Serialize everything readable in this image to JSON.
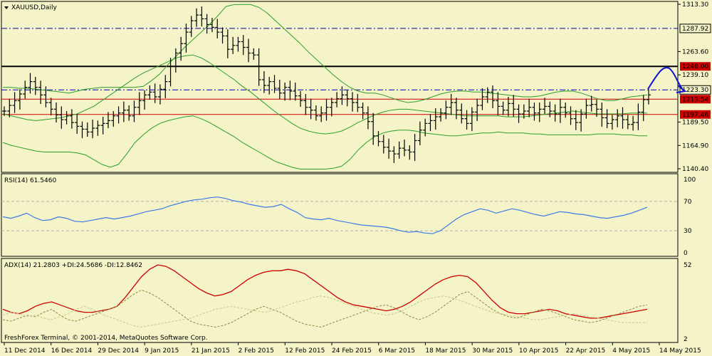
{
  "chart_data": [
    {
      "type": "candlestick",
      "title": "XAUUSD,Daily",
      "ylim": [
        1140.4,
        1313.3
      ],
      "yticks": [
        "1313.30",
        "1263.60",
        "1239.10",
        "1189.50",
        "1164.90",
        "1140.40"
      ],
      "levels": [
        {
          "label": "1287.92",
          "value": 1287.92,
          "style": "dashdot",
          "color": "#0000aa"
        },
        {
          "label": "1248.00",
          "value": 1248.0,
          "style": "solid",
          "color": "#000000",
          "tag": "#cc0000"
        },
        {
          "label": "1223.30",
          "value": 1223.3,
          "style": "dashdot",
          "color": "#0000aa"
        },
        {
          "label": "1213.54",
          "value": 1213.54,
          "style": "solid",
          "color": "#cc0000",
          "tag": "#cc0000"
        },
        {
          "label": "1197.46",
          "value": 1197.46,
          "style": "solid",
          "color": "#cc0000",
          "tag": "#cc0000"
        }
      ],
      "close": [
        1201,
        1207,
        1212,
        1219,
        1226,
        1232,
        1226,
        1218,
        1210,
        1203,
        1197,
        1192,
        1196,
        1189,
        1185,
        1182,
        1179,
        1183,
        1186,
        1188,
        1191,
        1196,
        1199,
        1202,
        1196,
        1205,
        1212,
        1218,
        1221,
        1216,
        1224,
        1232,
        1248,
        1262,
        1272,
        1284,
        1296,
        1302,
        1298,
        1292,
        1289,
        1284,
        1280,
        1266,
        1270,
        1274,
        1268,
        1262,
        1260,
        1234,
        1228,
        1232,
        1225,
        1220,
        1226,
        1222,
        1217,
        1212,
        1205,
        1202,
        1196,
        1199,
        1205,
        1210,
        1214,
        1218,
        1214,
        1210,
        1205,
        1199,
        1190,
        1175,
        1169,
        1163,
        1159,
        1156,
        1162,
        1160,
        1158,
        1170,
        1181,
        1188,
        1191,
        1195,
        1199,
        1205,
        1210,
        1202,
        1193,
        1188,
        1200,
        1207,
        1216,
        1221,
        1212,
        1206,
        1202,
        1209,
        1203,
        1198,
        1201,
        1205,
        1199,
        1203,
        1206,
        1201,
        1198,
        1205,
        1199,
        1193,
        1189,
        1198,
        1207,
        1208,
        1203,
        1194,
        1188,
        1192,
        1196,
        1192,
        1187,
        1189,
        1200,
        1213,
        1218
      ],
      "bb_upper": [
        1226,
        1226,
        1225,
        1225,
        1224,
        1223,
        1222,
        1221,
        1220,
        1222,
        1224,
        1225,
        1226,
        1226,
        1226,
        1226,
        1226,
        1227,
        1233,
        1240,
        1250,
        1259,
        1268,
        1276,
        1284,
        1292,
        1301,
        1311,
        1313,
        1313,
        1313,
        1310,
        1304,
        1296,
        1288,
        1280,
        1272,
        1263,
        1255,
        1247,
        1239,
        1232,
        1226,
        1222,
        1220,
        1220,
        1218,
        1215,
        1212,
        1210,
        1211,
        1213,
        1216,
        1219,
        1221,
        1222,
        1222,
        1221,
        1221,
        1220,
        1219,
        1218,
        1217,
        1216,
        1216,
        1217,
        1219,
        1221,
        1222,
        1222,
        1220,
        1217,
        1214,
        1212,
        1212,
        1214,
        1216,
        1217,
        1218
      ],
      "bb_middle": [
        1198,
        1196,
        1194,
        1192,
        1191,
        1192,
        1193,
        1194,
        1196,
        1198,
        1202,
        1206,
        1212,
        1218,
        1224,
        1230,
        1236,
        1241,
        1245,
        1249,
        1253,
        1257,
        1259,
        1260,
        1257,
        1252,
        1246,
        1240,
        1234,
        1227,
        1221,
        1214,
        1207,
        1200,
        1194,
        1188,
        1183,
        1180,
        1178,
        1177,
        1178,
        1180,
        1184,
        1189,
        1193,
        1197,
        1200,
        1202,
        1203,
        1203,
        1202,
        1201,
        1200,
        1199,
        1198,
        1197,
        1196,
        1196,
        1196,
        1196,
        1196,
        1195,
        1195,
        1195,
        1196,
        1197,
        1198,
        1199,
        1200,
        1201,
        1200,
        1199,
        1198,
        1198,
        1198,
        1198,
        1199,
        1199,
        1199
      ],
      "bb_lower": [
        1168,
        1165,
        1163,
        1161,
        1159,
        1158,
        1158,
        1158,
        1158,
        1157,
        1155,
        1150,
        1145,
        1142,
        1145,
        1156,
        1168,
        1176,
        1183,
        1188,
        1191,
        1193,
        1195,
        1196,
        1193,
        1189,
        1184,
        1179,
        1174,
        1168,
        1163,
        1158,
        1153,
        1148,
        1145,
        1142,
        1140,
        1140,
        1140,
        1140,
        1141,
        1143,
        1150,
        1160,
        1168,
        1174,
        1178,
        1180,
        1181,
        1181,
        1180,
        1178,
        1177,
        1176,
        1175,
        1175,
        1176,
        1177,
        1178,
        1178,
        1179,
        1178,
        1178,
        1178,
        1177,
        1177,
        1176,
        1176,
        1176,
        1176,
        1176,
        1176,
        1177,
        1177,
        1177,
        1176,
        1176,
        1175,
        1175
      ],
      "xticks": [
        "11 Dec 2014",
        "16 Dec 2014",
        "29 Dec 2014",
        "9 Jan 2015",
        "21 Jan 2015",
        "2 Feb 2015",
        "12 Feb 2015",
        "24 Feb 2015",
        "6 Mar 2015",
        "18 Mar 2015",
        "30 Mar 2015",
        "10 Apr 2015",
        "22 Apr 2015",
        "4 May 2015",
        "14 May 2015"
      ]
    },
    {
      "type": "line",
      "title": "RSI(14) 61.5460",
      "ylim": [
        0,
        100
      ],
      "yticks": [
        "100",
        "70",
        "30",
        "0"
      ],
      "levels": [
        70,
        30
      ],
      "values": [
        49,
        47,
        50,
        54,
        48,
        44,
        45,
        49,
        47,
        43,
        42,
        44,
        46,
        48,
        46,
        48,
        50,
        53,
        56,
        58,
        60,
        64,
        67,
        70,
        72,
        73,
        75,
        76,
        74,
        71,
        69,
        66,
        64,
        62,
        63,
        66,
        60,
        55,
        48,
        46,
        45,
        47,
        44,
        42,
        40,
        38,
        37,
        36,
        35,
        33,
        30,
        28,
        29,
        27,
        26,
        30,
        38,
        46,
        52,
        56,
        60,
        58,
        54,
        57,
        60,
        58,
        55,
        52,
        50,
        53,
        56,
        55,
        53,
        52,
        50,
        48,
        47,
        49,
        51,
        54,
        58,
        62
      ],
      "line_color": "#3a7ce8"
    },
    {
      "type": "line",
      "title": "ADX(14) 21.2803 +DI:24.5686 -DI:12.8462",
      "ylim": [
        2,
        52
      ],
      "yticks": [
        "52",
        "2"
      ],
      "series": [
        {
          "name": "ADX",
          "color": "#cc0000",
          "values": [
            22,
            20,
            19,
            21,
            24,
            26,
            27,
            25,
            23,
            21,
            20,
            20,
            21,
            22,
            24,
            30,
            37,
            44,
            49,
            52,
            51,
            48,
            44,
            40,
            36,
            33,
            31,
            32,
            34,
            38,
            42,
            45,
            47,
            48,
            48,
            49,
            48,
            46,
            42,
            38,
            34,
            30,
            27,
            25,
            24,
            23,
            22,
            21,
            22,
            24,
            27,
            31,
            35,
            39,
            42,
            44,
            45,
            44,
            40,
            34,
            28,
            23,
            20,
            19,
            19,
            20,
            21,
            22,
            21,
            19,
            18,
            17,
            16,
            16,
            17,
            18,
            19,
            20,
            21,
            22
          ]
        },
        {
          "name": "+DI",
          "color": "#8a8a3c",
          "values": [
            15,
            14,
            16,
            18,
            17,
            20,
            22,
            18,
            15,
            14,
            16,
            18,
            20,
            22,
            24,
            28,
            32,
            35,
            33,
            30,
            26,
            22,
            18,
            14,
            12,
            11,
            10,
            11,
            13,
            16,
            19,
            22,
            24,
            22,
            20,
            17,
            14,
            12,
            11,
            10,
            12,
            14,
            16,
            18,
            20,
            22,
            24,
            25,
            23,
            20,
            17,
            15,
            17,
            20,
            24,
            28,
            32,
            34,
            30,
            26,
            22,
            19,
            17,
            16,
            18,
            20,
            22,
            21,
            19,
            17,
            15,
            14,
            13,
            14,
            16,
            18,
            20,
            22,
            24,
            25
          ]
        },
        {
          "name": "-DI",
          "color": "#c8c890",
          "values": [
            18,
            20,
            19,
            17,
            18,
            16,
            15,
            17,
            19,
            22,
            24,
            22,
            19,
            17,
            15,
            13,
            11,
            10,
            11,
            12,
            13,
            14,
            15,
            16,
            18,
            20,
            22,
            23,
            24,
            23,
            22,
            21,
            20,
            21,
            23,
            25,
            27,
            28,
            30,
            31,
            30,
            28,
            26,
            24,
            22,
            20,
            19,
            18,
            19,
            21,
            24,
            27,
            29,
            30,
            31,
            30,
            28,
            26,
            24,
            22,
            20,
            19,
            18,
            17,
            16,
            15,
            15,
            16,
            17,
            18,
            19,
            18,
            17,
            16,
            15,
            14,
            13,
            13,
            13,
            13
          ]
        }
      ]
    }
  ],
  "footer": "FreshForex Terminal, © 2001-2014, MetaQuotes Software Corp."
}
